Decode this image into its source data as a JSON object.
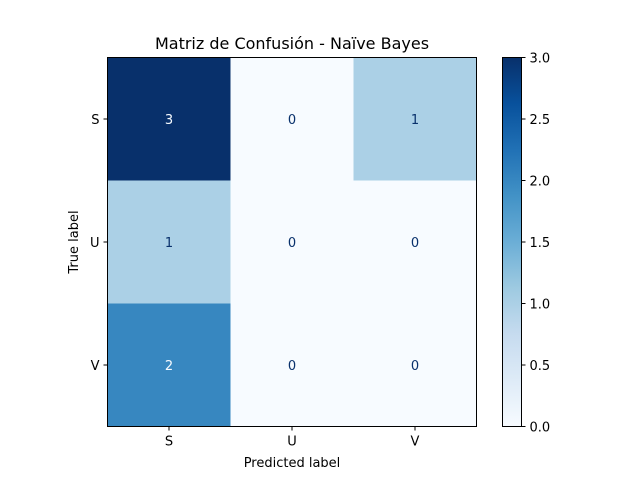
{
  "chart_data": {
    "type": "heatmap",
    "title": "Matriz de Confusión - Naïve Bayes",
    "xlabel": "Predicted label",
    "ylabel": "True label",
    "x_categories": [
      "S",
      "U",
      "V"
    ],
    "y_categories": [
      "S",
      "U",
      "V"
    ],
    "values": [
      [
        3,
        0,
        1
      ],
      [
        1,
        0,
        0
      ],
      [
        2,
        0,
        0
      ]
    ],
    "colormap": "Blues",
    "vmin": 0,
    "vmax": 3,
    "colorbar_ticks": [
      "0.0",
      "0.5",
      "1.0",
      "1.5",
      "2.0",
      "2.5",
      "3.0"
    ],
    "grid": false
  }
}
